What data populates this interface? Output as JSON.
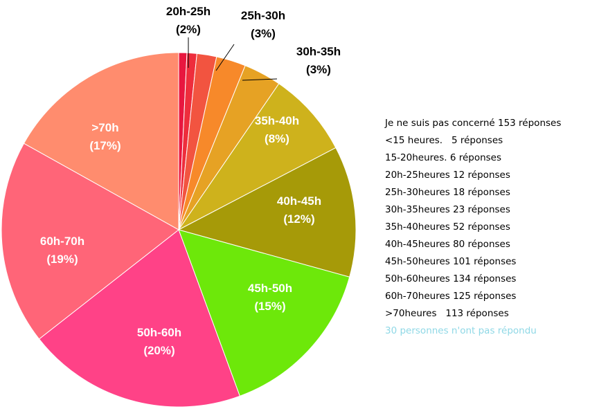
{
  "chart_data": {
    "type": "pie",
    "start_angle_deg": 0,
    "direction": "clockwise",
    "slices": [
      {
        "label": "",
        "value": 5,
        "color": "#e8173f"
      },
      {
        "label": "",
        "value": 6,
        "color": "#ee2d3c"
      },
      {
        "label": "20h-25h",
        "pct_label": "(2%)",
        "value": 12,
        "color": "#f25440"
      },
      {
        "label": "25h-30h",
        "pct_label": "(3%)",
        "value": 18,
        "color": "#f7892a"
      },
      {
        "label": "30h-35h",
        "pct_label": "(3%)",
        "value": 23,
        "color": "#e6a224"
      },
      {
        "label": "35h-40h",
        "pct_label": "(8%)",
        "value": 52,
        "color": "#ceb21c"
      },
      {
        "label": "40h-45h",
        "pct_label": "(12%)",
        "value": 80,
        "color": "#a69a08"
      },
      {
        "label": "45h-50h",
        "pct_label": "(15%)",
        "value": 101,
        "color": "#6de80a"
      },
      {
        "label": "50h-60h",
        "pct_label": "(20%)",
        "value": 134,
        "color": "#ff4287"
      },
      {
        "label": "60h-70h",
        "pct_label": "(19%)",
        "value": 125,
        "color": "#ff6578"
      },
      {
        "label": ">70h",
        "pct_label": "(17%)",
        "value": 113,
        "color": "#ff8c6e"
      }
    ],
    "legend": [
      "Je ne suis pas concerné 153 réponses",
      "<15 heures.   5 réponses",
      "15-20heures. 6 réponses",
      "20h-25heures 12 réponses",
      "25h-30heures 18 réponses",
      "30h-35heures 23 réponses",
      "35h-40heures 52 réponses",
      "40h-45heures 80 réponses",
      "45h-50heures 101 réponses",
      "50h-60heures 134 réponses",
      "60h-70heures 125 réponses",
      ">70heures   113 réponses"
    ],
    "note": "30 personnes n'ont pas répondu"
  }
}
